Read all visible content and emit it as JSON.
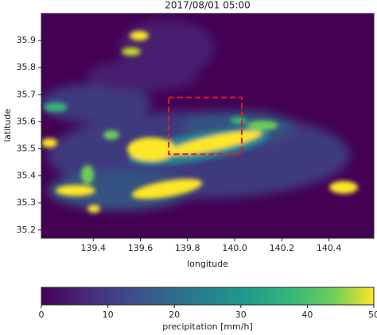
{
  "chart_data": {
    "type": "heatmap",
    "title": "2017/08/01 05:00",
    "xlabel": "longitude",
    "ylabel": "latitude",
    "xlim": [
      139.18,
      140.59
    ],
    "ylim": [
      35.17,
      36.0
    ],
    "xticks": [
      139.4,
      139.6,
      139.8,
      {
        "value": 140,
        "label": "140.0"
      },
      140.2,
      140.4
    ],
    "yticks": [
      35.2,
      35.3,
      35.4,
      35.5,
      35.6,
      35.7,
      35.8,
      35.9
    ],
    "box": {
      "color": "#e31a1c",
      "lon": [
        139.72,
        140.03
      ],
      "lat": [
        35.48,
        35.69
      ]
    },
    "colorbar": {
      "label": "precipitation [mm/h]",
      "lim": [
        0,
        50
      ],
      "ticks": [
        0,
        10,
        20,
        30,
        40,
        50
      ]
    }
  }
}
